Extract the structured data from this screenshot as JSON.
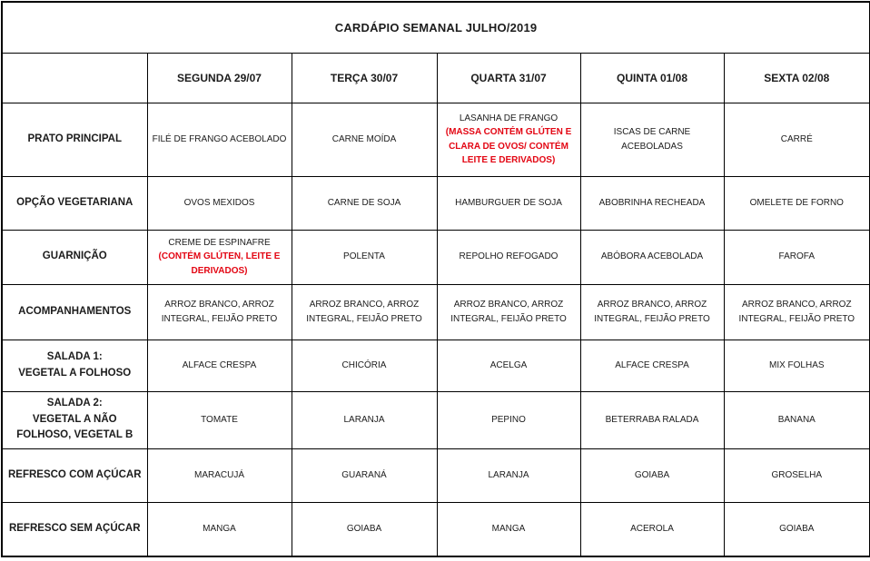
{
  "title": "CARDÁPIO SEMANAL JULHO/2019",
  "colors": {
    "allergen_red": "#e30613",
    "border": "#000000",
    "background": "#ffffff",
    "text": "#1c1c1c"
  },
  "columns": [
    "",
    "SEGUNDA 29/07",
    "TERÇA 30/07",
    "QUARTA 31/07",
    "QUINTA 01/08",
    "SEXTA 02/08"
  ],
  "rows": [
    {
      "label": "PRATO PRINCIPAL",
      "cells": [
        {
          "text": "FILÉ DE FRANGO ACEBOLADO"
        },
        {
          "text": "CARNE MOÍDA"
        },
        {
          "text": "LASANHA DE FRANGO",
          "allergen": "(MASSA CONTÉM GLÚTEN E CLARA DE OVOS/ CONTÉM LEITE E DERIVADOS)"
        },
        {
          "text": "ISCAS DE CARNE ACEBOLADAS"
        },
        {
          "text": "CARRÉ"
        }
      ]
    },
    {
      "label": "OPÇÃO VEGETARIANA",
      "cells": [
        {
          "text": "OVOS MEXIDOS"
        },
        {
          "text": "CARNE DE SOJA"
        },
        {
          "text": "HAMBURGUER DE SOJA"
        },
        {
          "text": "ABOBRINHA RECHEADA"
        },
        {
          "text": "OMELETE DE FORNO"
        }
      ]
    },
    {
      "label": "GUARNIÇÃO",
      "cells": [
        {
          "text": "CREME DE ESPINAFRE",
          "allergen": "(CONTÉM GLÚTEN, LEITE E DERIVADOS)"
        },
        {
          "text": "POLENTA"
        },
        {
          "text": "REPOLHO REFOGADO"
        },
        {
          "text": "ABÓBORA ACEBOLADA"
        },
        {
          "text": "FAROFA"
        }
      ]
    },
    {
      "label": "ACOMPANHAMENTOS",
      "cells": [
        {
          "text": "ARROZ BRANCO, ARROZ INTEGRAL, FEIJÃO PRETO"
        },
        {
          "text": "ARROZ BRANCO, ARROZ INTEGRAL, FEIJÃO PRETO"
        },
        {
          "text": "ARROZ BRANCO, ARROZ INTEGRAL, FEIJÃO PRETO"
        },
        {
          "text": "ARROZ BRANCO, ARROZ INTEGRAL, FEIJÃO PRETO"
        },
        {
          "text": "ARROZ BRANCO, ARROZ INTEGRAL, FEIJÃO PRETO"
        }
      ]
    },
    {
      "label": "SALADA 1:\nVEGETAL A FOLHOSO",
      "cells": [
        {
          "text": "ALFACE CRESPA"
        },
        {
          "text": "CHICÓRIA"
        },
        {
          "text": "ACELGA"
        },
        {
          "text": "ALFACE CRESPA"
        },
        {
          "text": "MIX FOLHAS"
        }
      ]
    },
    {
      "label": "SALADA 2:\nVEGETAL A NÃO\nFOLHOSO, VEGETAL B",
      "cells": [
        {
          "text": "TOMATE"
        },
        {
          "text": "LARANJA"
        },
        {
          "text": "PEPINO"
        },
        {
          "text": "BETERRABA RALADA"
        },
        {
          "text": "BANANA"
        }
      ]
    },
    {
      "label": "REFRESCO COM AÇÚCAR",
      "cells": [
        {
          "text": "MARACUJÁ"
        },
        {
          "text": "GUARANÁ"
        },
        {
          "text": "LARANJA"
        },
        {
          "text": "GOIABA"
        },
        {
          "text": "GROSELHA"
        }
      ]
    },
    {
      "label": "REFRESCO SEM AÇÚCAR",
      "cells": [
        {
          "text": "MANGA"
        },
        {
          "text": "GOIABA"
        },
        {
          "text": "MANGA"
        },
        {
          "text": "ACEROLA"
        },
        {
          "text": "GOIABA"
        }
      ]
    }
  ]
}
